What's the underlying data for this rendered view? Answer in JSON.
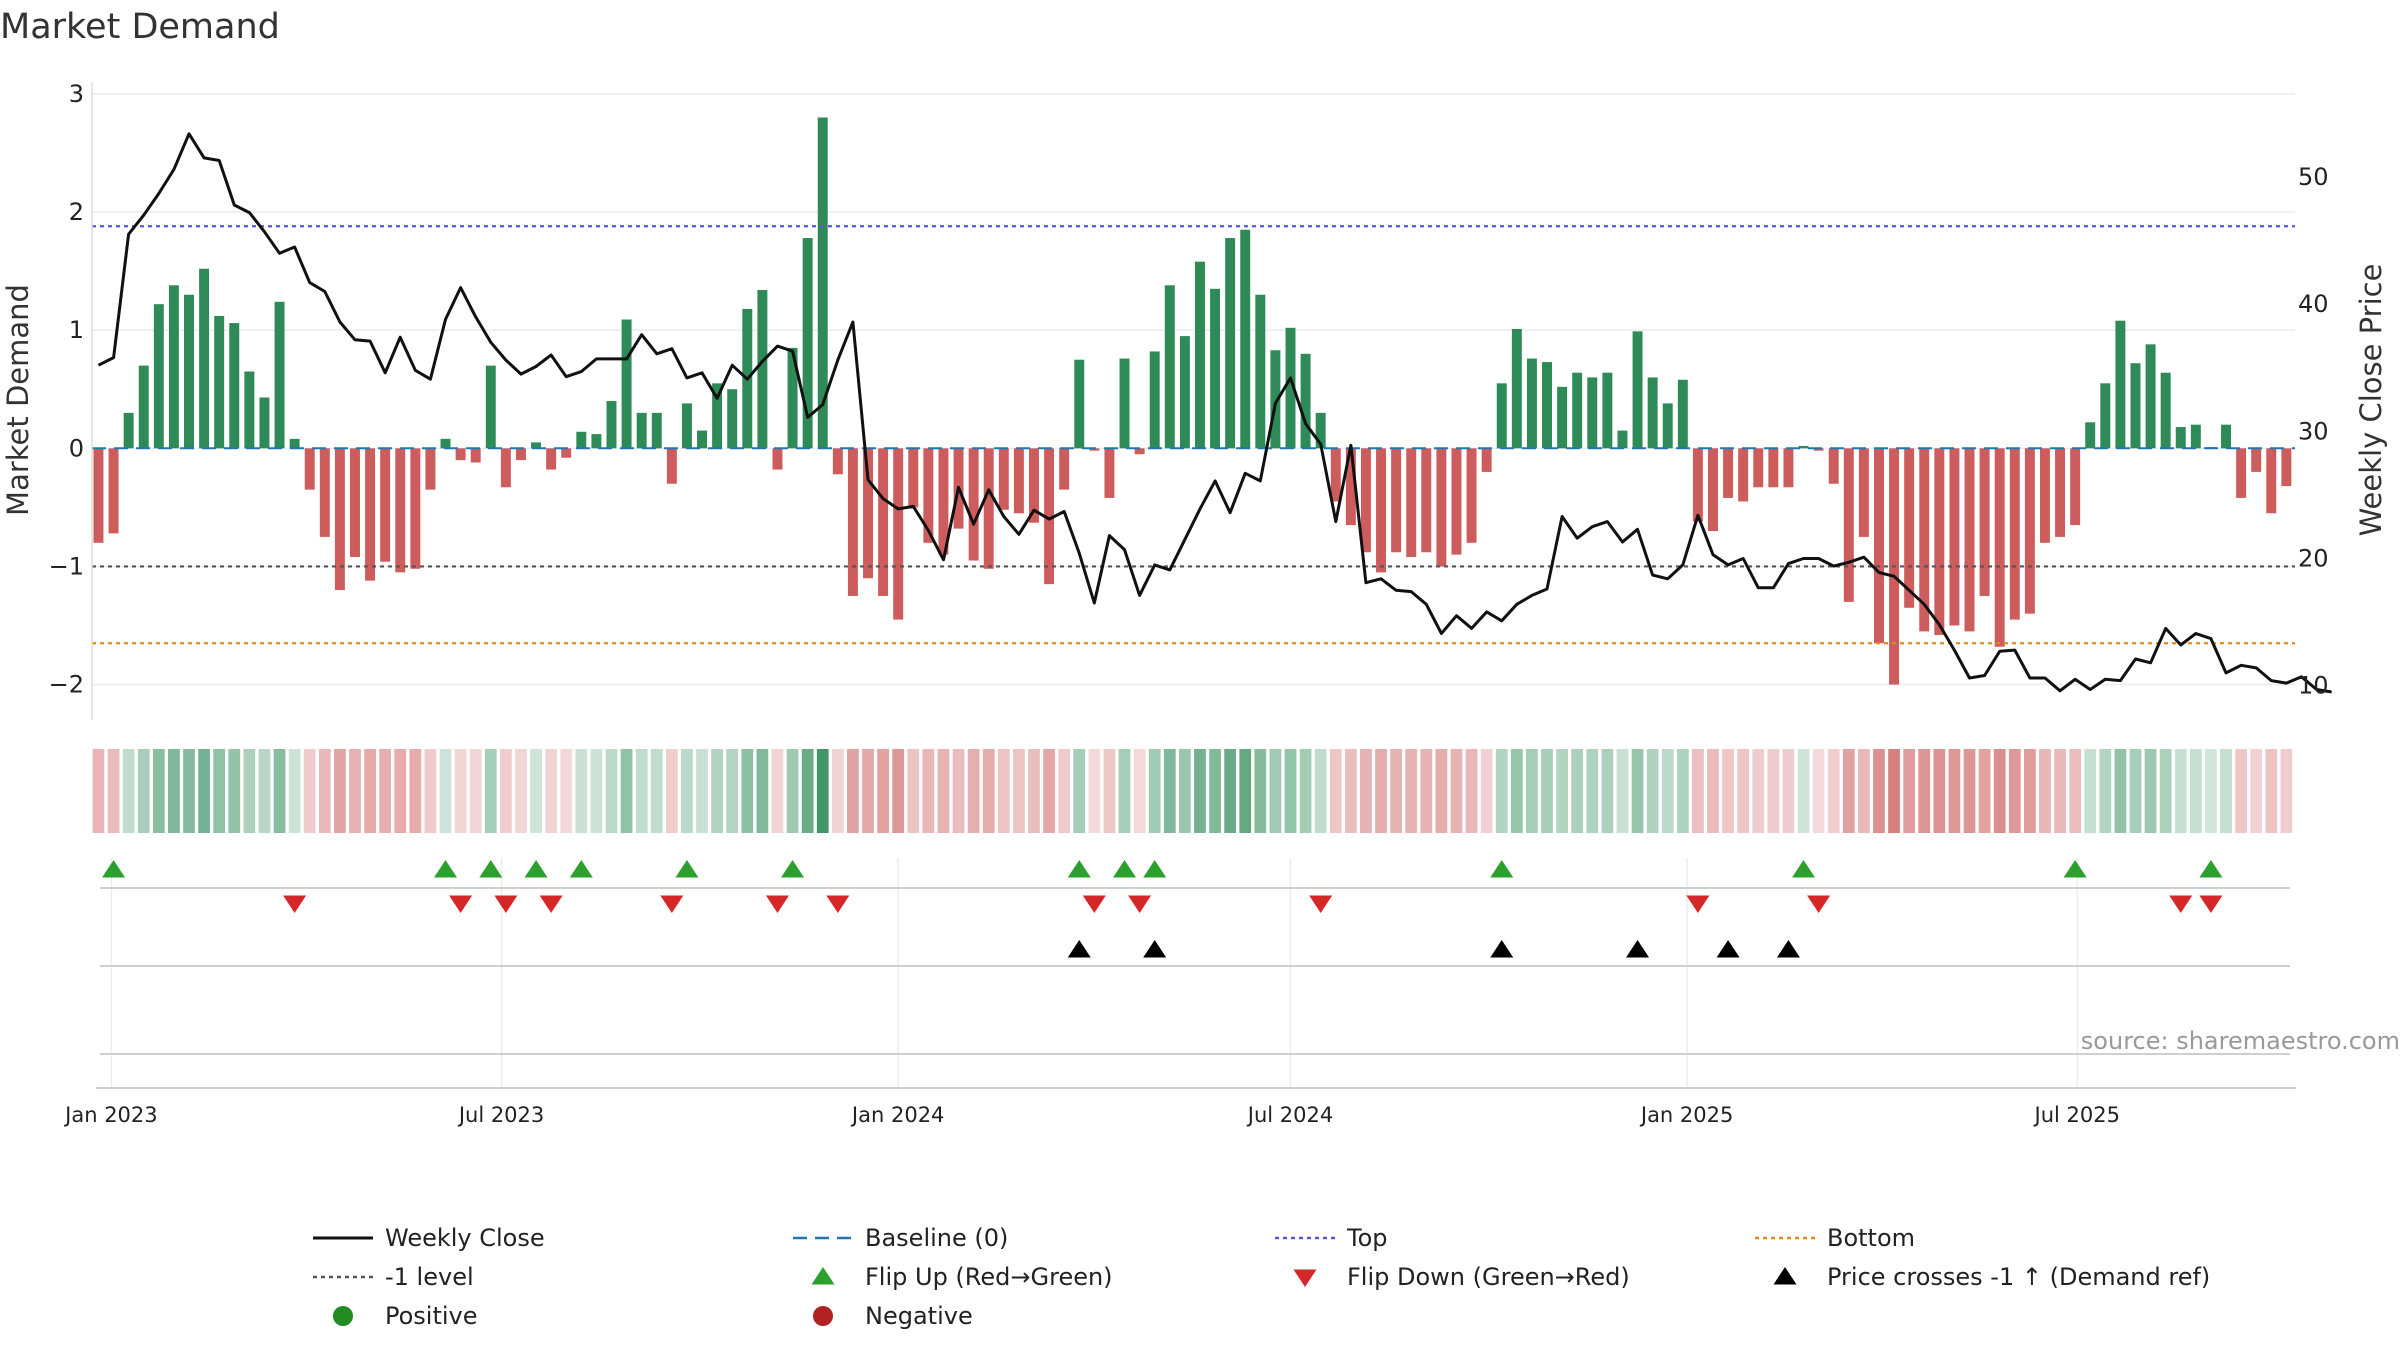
{
  "chart_data": {
    "type": "bar",
    "title": "Market Demand",
    "ylabel": "Market Demand",
    "y2label": "Weekly Close Price",
    "ylim": [
      -2.3,
      3.05
    ],
    "y2lim": [
      7.3,
      57.0
    ],
    "yticks": [
      3,
      2,
      1,
      0,
      -1,
      -2
    ],
    "ytick_labels": [
      "3",
      "2",
      "1",
      "0",
      "−1",
      "−2"
    ],
    "y2ticks": [
      50,
      40,
      30,
      20,
      10
    ],
    "x_start": "2022-12-26",
    "x_end": "2025-10-06",
    "xticks": [
      "2023-01-01",
      "2023-07-01",
      "2024-01-01",
      "2024-07-01",
      "2025-01-01",
      "2025-07-01"
    ],
    "xtick_labels": [
      "Jan 2023",
      "Jul 2023",
      "Jan 2024",
      "Jul 2024",
      "Jan 2025",
      "Jul 2025"
    ],
    "lines": {
      "top": 1.88,
      "bottom": -1.65,
      "level": -1
    },
    "colors": {
      "positive": "#2e8b57",
      "negative": "#cd5c5c",
      "price": "#111111",
      "baseline": "#1f77b4",
      "top": "#5a5ad6",
      "bottom": "#e08a1e",
      "level": "#555555",
      "flip_up": "#2ca02c",
      "flip_down": "#d62728",
      "cross": "#000000",
      "pos_dot": "#228b22",
      "neg_dot": "#b22222"
    },
    "series": [
      {
        "name": "Market Demand",
        "values": [
          -0.8,
          -0.72,
          0.3,
          0.7,
          1.22,
          1.38,
          1.3,
          1.52,
          1.12,
          1.06,
          0.65,
          0.43,
          1.24,
          0.08,
          -0.35,
          -0.75,
          -1.2,
          -0.92,
          -1.12,
          -0.96,
          -1.05,
          -1.02,
          -0.35,
          0.08,
          -0.1,
          -0.12,
          0.7,
          -0.33,
          -0.1,
          0.05,
          -0.18,
          -0.08,
          0.14,
          0.12,
          0.4,
          1.09,
          0.3,
          0.3,
          -0.3,
          0.38,
          0.15,
          0.55,
          0.5,
          1.18,
          1.34,
          -0.18,
          0.85,
          1.78,
          2.8,
          -0.22,
          -1.25,
          -1.1,
          -1.25,
          -1.45,
          -0.5,
          -0.8,
          -0.9,
          -0.68,
          -0.95,
          -1.02,
          -0.52,
          -0.55,
          -0.63,
          -1.15,
          -0.35,
          0.75,
          -0.02,
          -0.42,
          0.76,
          -0.05,
          0.82,
          1.38,
          0.95,
          1.58,
          1.35,
          1.78,
          1.85,
          1.3,
          0.83,
          1.02,
          0.8,
          0.3,
          -0.45,
          -0.65,
          -0.88,
          -1.05,
          -0.88,
          -0.92,
          -0.88,
          -1.0,
          -0.9,
          -0.8,
          -0.2,
          0.55,
          1.01,
          0.76,
          0.73,
          0.52,
          0.64,
          0.6,
          0.64,
          0.15,
          0.99,
          0.6,
          0.38,
          0.58,
          -0.62,
          -0.7,
          -0.42,
          -0.45,
          -0.33,
          -0.33,
          -0.33,
          0.02,
          -0.02,
          -0.3,
          -1.3,
          -0.75,
          -1.65,
          -2.0,
          -1.35,
          -1.55,
          -1.58,
          -1.5,
          -1.55,
          -1.25,
          -1.68,
          -1.45,
          -1.4,
          -0.8,
          -0.75,
          -0.65,
          0.22,
          0.55,
          1.08,
          0.72,
          0.88,
          0.64,
          0.18,
          0.2,
          0.01,
          0.2,
          -0.42,
          -0.2,
          -0.55,
          -0.32
        ]
      },
      {
        "name": "Weekly Close",
        "axis": "right",
        "values": [
          35.2,
          35.8,
          45.5,
          47,
          48.7,
          50.6,
          53.4,
          51.5,
          51.3,
          47.8,
          47.2,
          45.7,
          44,
          44.5,
          41.7,
          41,
          38.6,
          37.2,
          37.1,
          34.6,
          37.4,
          34.8,
          34.1,
          38.8,
          41.3,
          39,
          37,
          35.6,
          34.5,
          35.1,
          36,
          34.3,
          34.7,
          35.7,
          35.7,
          35.7,
          37.6,
          36.1,
          36.5,
          34.2,
          34.6,
          32.6,
          35.2,
          34.1,
          35.5,
          36.7,
          36.3,
          31.1,
          32.1,
          35.6,
          38.6,
          26.2,
          24.7,
          23.9,
          24.1,
          22.2,
          19.9,
          25.6,
          22.7,
          25.4,
          23.3,
          21.9,
          23.8,
          23.1,
          23.7,
          20.4,
          16.5,
          21.8,
          20.7,
          17.1,
          19.5,
          19.1,
          21.5,
          23.9,
          26.1,
          23.6,
          26.7,
          26.1,
          32.2,
          34.2,
          30.6,
          29,
          22.9,
          28.9,
          18.1,
          18.4,
          17.5,
          17.4,
          16.4,
          14.1,
          15.5,
          14.5,
          15.8,
          15.1,
          16.4,
          17.1,
          17.6,
          23.3,
          21.6,
          22.5,
          22.9,
          21.3,
          22.3,
          18.7,
          18.4,
          19.5,
          23.4,
          20.3,
          19.5,
          20,
          17.7,
          17.7,
          19.6,
          20,
          20,
          19.4,
          19.7,
          20.1,
          18.9,
          18.6,
          17.5,
          16.4,
          14.8,
          12.8,
          10.6,
          10.8,
          12.7,
          12.8,
          10.6,
          10.6,
          9.6,
          10.5,
          9.7,
          10.5,
          10.4,
          12.1,
          11.8,
          14.5,
          13.2,
          14.1,
          13.7,
          11,
          11.6,
          11.4,
          10.4,
          10.2,
          10.7,
          9.7,
          9.5
        ]
      }
    ],
    "flip_up_weeks": [
      1,
      23,
      26,
      29,
      32,
      39,
      46,
      65,
      68,
      70,
      93,
      113,
      131,
      140
    ],
    "flip_down_weeks": [
      13,
      24,
      27,
      30,
      38,
      45,
      49,
      66,
      69,
      81,
      106,
      114,
      138,
      140
    ],
    "price_cross_weeks": [
      65,
      70,
      93,
      102,
      108,
      112
    ],
    "source": "source: sharemaestro.com",
    "legend": [
      {
        "label": "Weekly Close",
        "marker": "line"
      },
      {
        "label": "Baseline (0)",
        "marker": "dash"
      },
      {
        "label": "Top",
        "marker": "dot-blue"
      },
      {
        "label": "Bottom",
        "marker": "dot-orange"
      },
      {
        "label": "-1 level",
        "marker": "dot-grey"
      },
      {
        "label": "Flip Up (Red→Green)",
        "marker": "tri-up-green"
      },
      {
        "label": "Flip Down (Green→Red)",
        "marker": "tri-down-red"
      },
      {
        "label": "Price crosses -1 ↑ (Demand ref)",
        "marker": "tri-up-black"
      },
      {
        "label": "Positive",
        "marker": "dot-green"
      },
      {
        "label": "Negative",
        "marker": "dot-red"
      }
    ]
  }
}
